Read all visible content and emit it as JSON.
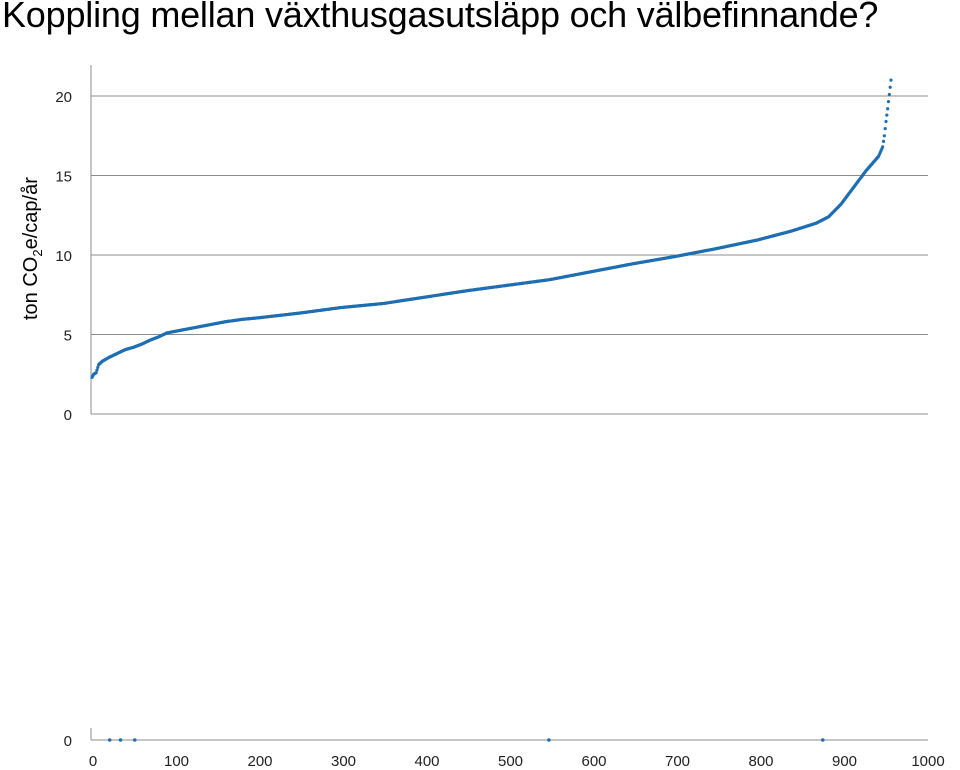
{
  "title": "Koppling mellan växthusgasutsläpp och välbefinnande?",
  "colors": {
    "series": "#1F6FB2",
    "grid": "#8C8C8C",
    "axis": "#8C8C8C"
  },
  "chart_data": {
    "type": "scatter",
    "ylabel_parts": {
      "before": "ton CO",
      "sub": "2",
      "after": "e/cap/år"
    },
    "yticks": [
      "0",
      "5",
      "10",
      "15",
      "20"
    ],
    "ylim": [
      0,
      20
    ],
    "xlim": [
      0,
      1000
    ],
    "xticks_bottom": [
      "0",
      "100",
      "200",
      "300",
      "400",
      "500",
      "600",
      "700",
      "800",
      "900",
      "1000"
    ],
    "bottom_axis_ytick": "0",
    "grid": true,
    "curve_knots": [
      [
        0,
        2.3
      ],
      [
        2,
        2.5
      ],
      [
        5,
        2.6
      ],
      [
        8,
        3.1
      ],
      [
        12,
        3.3
      ],
      [
        20,
        3.55
      ],
      [
        30,
        3.8
      ],
      [
        40,
        4.05
      ],
      [
        50,
        4.2
      ],
      [
        60,
        4.4
      ],
      [
        70,
        4.65
      ],
      [
        80,
        4.85
      ],
      [
        90,
        5.1
      ],
      [
        100,
        5.2
      ],
      [
        120,
        5.4
      ],
      [
        140,
        5.6
      ],
      [
        160,
        5.8
      ],
      [
        180,
        5.95
      ],
      [
        200,
        6.05
      ],
      [
        250,
        6.35
      ],
      [
        300,
        6.7
      ],
      [
        350,
        6.95
      ],
      [
        400,
        7.35
      ],
      [
        450,
        7.75
      ],
      [
        500,
        8.1
      ],
      [
        550,
        8.45
      ],
      [
        600,
        8.95
      ],
      [
        650,
        9.45
      ],
      [
        700,
        9.9
      ],
      [
        750,
        10.4
      ],
      [
        800,
        10.95
      ],
      [
        840,
        11.5
      ],
      [
        870,
        12.0
      ],
      [
        885,
        12.4
      ],
      [
        900,
        13.2
      ],
      [
        910,
        13.9
      ],
      [
        920,
        14.6
      ],
      [
        930,
        15.3
      ],
      [
        940,
        15.9
      ],
      [
        945,
        16.2
      ],
      [
        950,
        16.8
      ],
      [
        952,
        17.5
      ],
      [
        954,
        18.4
      ],
      [
        956,
        19.2
      ],
      [
        958,
        20.1
      ],
      [
        960,
        21.0
      ]
    ],
    "point_count": 960,
    "bottom_points_x": [
      20,
      33,
      50,
      546,
      874
    ]
  }
}
